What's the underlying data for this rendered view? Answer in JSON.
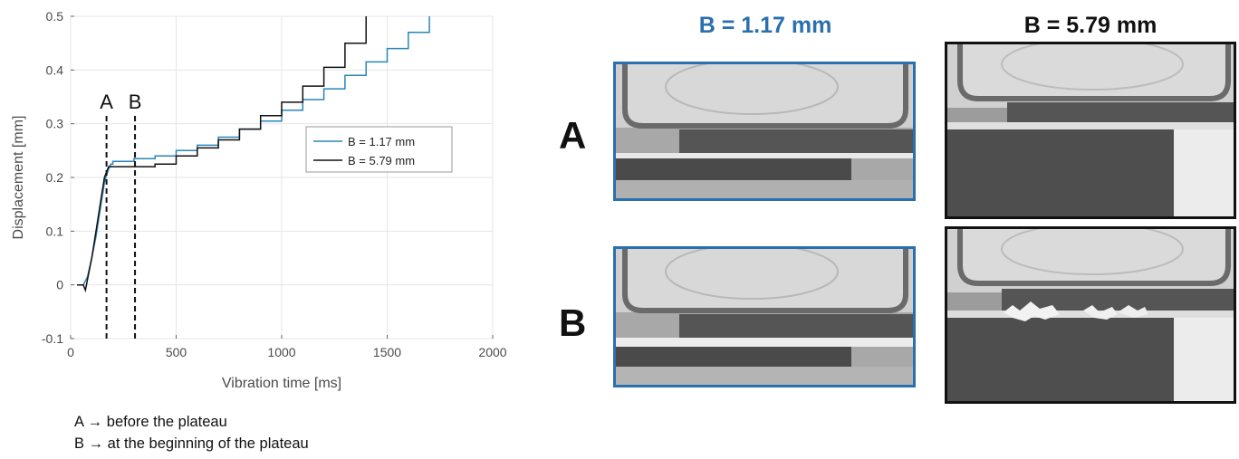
{
  "chart_data": {
    "type": "line",
    "xlabel": "Vibration time [ms]",
    "ylabel": "Displacement [mm]",
    "xlim": [
      0,
      2000
    ],
    "ylim": [
      -0.1,
      0.5
    ],
    "xticks": [
      0,
      500,
      1000,
      1500,
      2000
    ],
    "yticks": [
      -0.1,
      0,
      0.1,
      0.2,
      0.3,
      0.4,
      0.5
    ],
    "grid": true,
    "legend_position": "middle-right",
    "series": [
      {
        "name": "B = 1.17 mm",
        "color": "#2a86b8",
        "x": [
          30,
          60,
          80,
          100,
          120,
          140,
          160,
          170,
          180,
          190,
          200,
          300,
          400,
          500,
          600,
          700,
          800,
          900,
          1000,
          1100,
          1200,
          1300,
          1400,
          1500,
          1600,
          1700
        ],
        "y": [
          0,
          0,
          0.015,
          0.05,
          0.09,
          0.14,
          0.19,
          0.205,
          0.215,
          0.225,
          0.23,
          0.235,
          0.24,
          0.25,
          0.26,
          0.275,
          0.29,
          0.305,
          0.325,
          0.345,
          0.365,
          0.39,
          0.415,
          0.44,
          0.47,
          0.5
        ]
      },
      {
        "name": "B = 5.79 mm",
        "color": "#111111",
        "x": [
          30,
          60,
          70,
          80,
          100,
          120,
          140,
          160,
          170,
          180,
          200,
          300,
          400,
          500,
          600,
          700,
          800,
          900,
          1000,
          1100,
          1200,
          1300,
          1400
        ],
        "y": [
          0,
          0,
          -0.01,
          0.01,
          0.05,
          0.1,
          0.15,
          0.2,
          0.21,
          0.22,
          0.22,
          0.22,
          0.225,
          0.24,
          0.255,
          0.27,
          0.29,
          0.315,
          0.34,
          0.37,
          0.405,
          0.45,
          0.5
        ]
      }
    ],
    "vlines": [
      {
        "label": "A",
        "x": 170
      },
      {
        "label": "B",
        "x": 305
      }
    ]
  },
  "notes": {
    "line_a": "A → before the plateau",
    "line_b": "B → at the beginning of the plateau"
  },
  "photos": {
    "col_1_title": "B = 1.17 mm",
    "col_2_title": "B = 5.79 mm",
    "col_1_color": "#2a6fae",
    "col_2_color": "#111111",
    "row_a_label": "A",
    "row_b_label": "B"
  }
}
